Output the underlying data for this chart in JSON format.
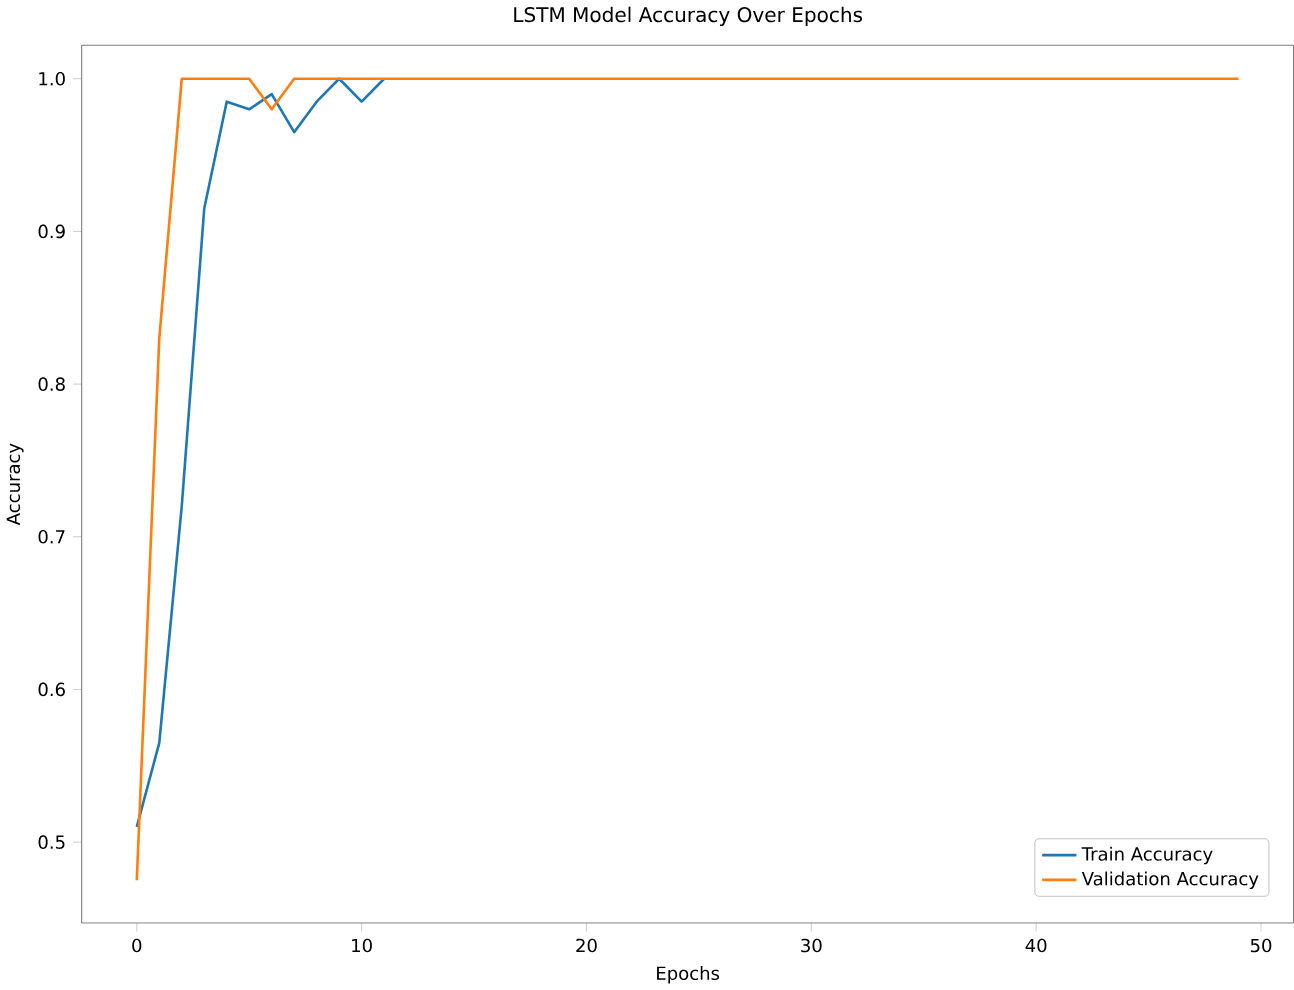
{
  "chart_data": {
    "type": "line",
    "title": "LSTM Model Accuracy Over Epochs",
    "xlabel": "Epochs",
    "ylabel": "Accuracy",
    "x": [
      0,
      1,
      2,
      3,
      4,
      5,
      6,
      7,
      8,
      9,
      10,
      11,
      12,
      13,
      14,
      15,
      16,
      17,
      18,
      19,
      20,
      21,
      22,
      23,
      24,
      25,
      26,
      27,
      28,
      29,
      30,
      31,
      32,
      33,
      34,
      35,
      36,
      37,
      38,
      39,
      40,
      41,
      42,
      43,
      44,
      45,
      46,
      47,
      48,
      49
    ],
    "series": [
      {
        "name": "Train Accuracy",
        "color": "#1f77b4",
        "values": [
          0.51,
          0.565,
          0.72,
          0.915,
          0.985,
          0.98,
          0.99,
          0.965,
          0.985,
          1.0,
          0.985,
          1.0,
          null,
          null,
          null,
          null,
          null,
          null,
          null,
          null,
          null,
          null,
          null,
          null,
          null,
          null,
          null,
          null,
          null,
          null,
          null,
          null,
          null,
          null,
          null,
          null,
          null,
          null,
          null,
          null,
          null,
          null,
          null,
          null,
          null,
          null,
          null,
          null,
          null,
          null
        ]
      },
      {
        "name": "Validation Accuracy",
        "color": "#ff7f0e",
        "values": [
          0.475,
          0.83,
          1.0,
          1.0,
          1.0,
          1.0,
          0.98,
          1.0,
          1.0,
          1.0,
          1.0,
          1.0,
          1.0,
          1.0,
          1.0,
          1.0,
          1.0,
          1.0,
          1.0,
          1.0,
          1.0,
          1.0,
          1.0,
          1.0,
          1.0,
          1.0,
          1.0,
          1.0,
          1.0,
          1.0,
          1.0,
          1.0,
          1.0,
          1.0,
          1.0,
          1.0,
          1.0,
          1.0,
          1.0,
          1.0,
          1.0,
          1.0,
          1.0,
          1.0,
          1.0,
          1.0,
          1.0,
          1.0,
          1.0,
          1.0
        ]
      }
    ],
    "xlim": [
      -2.45,
      51.45
    ],
    "ylim": [
      0.447,
      1.022
    ],
    "xticks": [
      0,
      10,
      20,
      30,
      40,
      50
    ],
    "yticks": [
      0.5,
      0.6,
      0.7,
      0.8,
      0.9,
      {
        "value": 1.0,
        "label": "1.0"
      }
    ],
    "legend": "bottom right",
    "grid": false,
    "marker": "none",
    "line_style": "solid"
  }
}
